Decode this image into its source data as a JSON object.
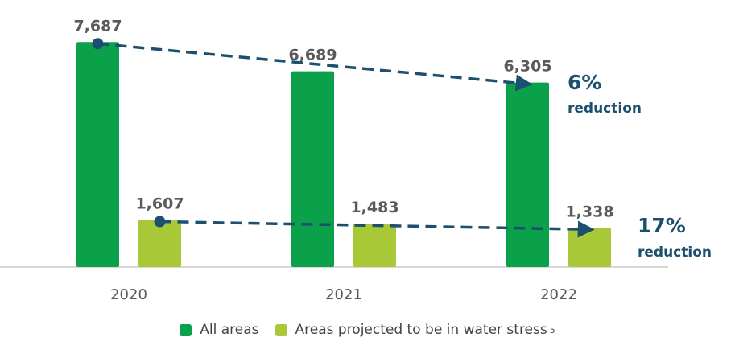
{
  "colors": {
    "all_areas": "#0ba04a",
    "water_stress": "#a9c838",
    "trend": "#1d4f6e",
    "axis": "#cccccc"
  },
  "chart_data": {
    "type": "bar",
    "categories": [
      "2020",
      "2021",
      "2022"
    ],
    "series": [
      {
        "name": "All areas",
        "values": [
          7687,
          6689,
          6305
        ],
        "labels": [
          "7,687",
          "6,689",
          "6,305"
        ]
      },
      {
        "name": "Areas projected to be in water stress",
        "footnote": "5",
        "values": [
          1607,
          1483,
          1338
        ],
        "labels": [
          "1,607",
          "1,483",
          "1,338"
        ]
      }
    ],
    "ylim": [
      0,
      8300
    ],
    "legend_position": "bottom",
    "annotations": [
      {
        "series": 0,
        "percent": "6%",
        "text": "reduction"
      },
      {
        "series": 1,
        "percent": "17%",
        "text": "reduction"
      }
    ]
  }
}
